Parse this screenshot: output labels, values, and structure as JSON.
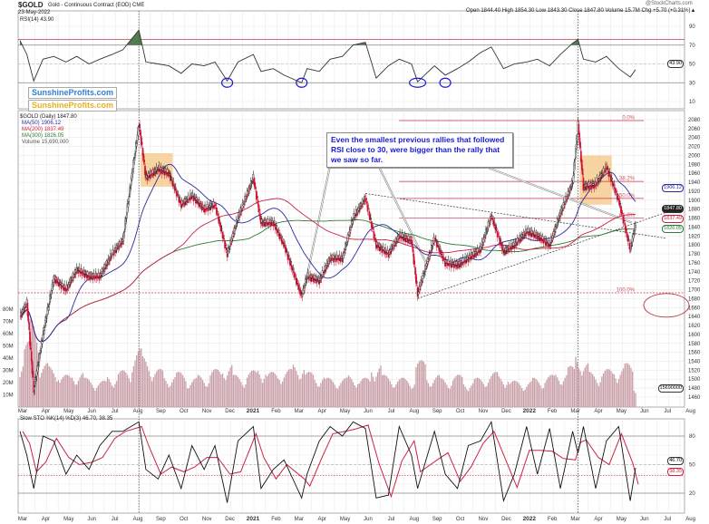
{
  "header": {
    "symbol": "$GOLD",
    "title": "Gold - Continuous Contract (EOD) CME",
    "date": "23-May-2022",
    "credit": "@StockCharts.com",
    "ohlc": "Open 1844.40  High 1854.30  Low 1843.30  Close 1847.80  Volume 15.7M  Chg +5.70 (+0.31%)▲"
  },
  "logos": {
    "blue": "SunshineProfits.com",
    "orange": "SunshineProfits.com"
  },
  "rsi_panel": {
    "label": "RSI(14) 43.90",
    "tag": "43.90",
    "ticks": [
      "90",
      "70",
      "50",
      "30",
      "10"
    ]
  },
  "price_panel": {
    "legend": [
      "$GOLD (Daily) 1847.80",
      "MA(50) 1906.12",
      "MA(200) 1837.49",
      "MA(300) 1826.05",
      "Volume 15,690,000"
    ],
    "tags": {
      "ma50": "1906.12",
      "close": "1847.80",
      "ma200": "1837.49",
      "ma300": "1826.05",
      "volume": "15690000"
    },
    "ticks": [
      "2080",
      "2060",
      "2040",
      "2020",
      "2000",
      "1980",
      "1960",
      "1940",
      "1920",
      "1900",
      "1880",
      "1860",
      "1840",
      "1820",
      "1800",
      "1780",
      "1760",
      "1740",
      "1720",
      "1700",
      "1680",
      "1660",
      "1640",
      "1620",
      "1600",
      "1580",
      "1560",
      "1540",
      "1520",
      "1500",
      "1480",
      "1460"
    ],
    "volume_ticks": [
      "80M",
      "70M",
      "60M",
      "50M",
      "40M",
      "30M",
      "20M",
      "10M"
    ],
    "fib_labels": [
      "0.0%",
      "38.2%",
      "50.0%",
      "61.8%",
      "100.0%"
    ],
    "callout": "Even the smallest previous rallies that followed RSI close to 30, were bigger than the rally that we saw so far."
  },
  "sto_panel": {
    "label": "Slow STO %K(14) %D(3) 46.70, 38.35",
    "tag_k": "46.70",
    "tag_d": "38.35",
    "ticks": [
      "80",
      "50",
      "20"
    ]
  },
  "months": [
    "Mar",
    "Apr",
    "May",
    "Jun",
    "Jul",
    "Aug",
    "Sep",
    "Oct",
    "Nov",
    "Dec",
    "2021",
    "Feb",
    "Mar",
    "Apr",
    "May",
    "Jun",
    "Jul",
    "Aug",
    "Sep",
    "Oct",
    "Nov",
    "Dec",
    "2022",
    "Feb",
    "Mar",
    "Apr",
    "May",
    "Jun",
    "Jul",
    "Aug"
  ],
  "colors": {
    "ma50": "#2a2aa0",
    "ma200": "#cc2244",
    "ma300": "#2e7d32",
    "down": "#cc1133",
    "up": "#111111",
    "volume": "#c9a0a8",
    "rsi_fill": "#4e7d4e",
    "box": "#f5c98a",
    "fib": "#cc3355",
    "callout": "#1a1ad8"
  },
  "chart_data": {
    "type": "candlestick",
    "title": "$GOLD Gold - Continuous Contract (EOD) CME",
    "ylim": [
      1460,
      2080
    ],
    "rsi_ylim": [
      0,
      100
    ],
    "sto_ylim": [
      0,
      100
    ],
    "fib_levels": {
      "0.0%": 2078,
      "38.2%": 1942,
      "50.0%": 1904,
      "61.8%": 1860,
      "100.0%": 1693
    },
    "columns": [
      "date",
      "close",
      "rsi",
      "sto_k",
      "volume_m"
    ],
    "series": [
      [
        "2020-03-01",
        1640,
        75,
        85,
        35
      ],
      [
        "2020-03-10",
        1670,
        60,
        60,
        45
      ],
      [
        "2020-03-19",
        1475,
        32,
        25,
        62
      ],
      [
        "2020-04-01",
        1600,
        55,
        80,
        30
      ],
      [
        "2020-04-15",
        1725,
        58,
        75,
        28
      ],
      [
        "2020-05-01",
        1700,
        52,
        40,
        22
      ],
      [
        "2020-05-15",
        1745,
        58,
        60,
        24
      ],
      [
        "2020-06-01",
        1730,
        50,
        45,
        20
      ],
      [
        "2020-06-15",
        1730,
        55,
        70,
        18
      ],
      [
        "2020-07-01",
        1780,
        60,
        85,
        22
      ],
      [
        "2020-07-15",
        1810,
        65,
        85,
        25
      ],
      [
        "2020-08-06",
        2070,
        86,
        95,
        40
      ],
      [
        "2020-08-15",
        1950,
        52,
        45,
        35
      ],
      [
        "2020-09-01",
        1970,
        50,
        35,
        26
      ],
      [
        "2020-09-15",
        1960,
        48,
        60,
        22
      ],
      [
        "2020-10-01",
        1890,
        40,
        25,
        24
      ],
      [
        "2020-10-15",
        1910,
        50,
        70,
        20
      ],
      [
        "2020-11-01",
        1880,
        48,
        45,
        22
      ],
      [
        "2020-11-15",
        1890,
        52,
        70,
        26
      ],
      [
        "2020-12-01",
        1780,
        32,
        10,
        30
      ],
      [
        "2020-12-15",
        1860,
        52,
        75,
        22
      ],
      [
        "2021-01-05",
        1950,
        60,
        90,
        25
      ],
      [
        "2021-01-15",
        1850,
        42,
        25,
        28
      ],
      [
        "2021-02-01",
        1850,
        45,
        45,
        24
      ],
      [
        "2021-02-15",
        1800,
        38,
        55,
        26
      ],
      [
        "2021-03-08",
        1685,
        30,
        15,
        30
      ],
      [
        "2021-03-15",
        1730,
        45,
        40,
        24
      ],
      [
        "2021-04-01",
        1720,
        42,
        75,
        22
      ],
      [
        "2021-04-15",
        1770,
        55,
        90,
        20
      ],
      [
        "2021-05-01",
        1770,
        58,
        80,
        20
      ],
      [
        "2021-05-15",
        1860,
        70,
        95,
        22
      ],
      [
        "2021-06-01",
        1905,
        73,
        88,
        20
      ],
      [
        "2021-06-15",
        1800,
        35,
        15,
        30
      ],
      [
        "2021-07-01",
        1780,
        48,
        18,
        22
      ],
      [
        "2021-07-15",
        1820,
        55,
        90,
        20
      ],
      [
        "2021-08-01",
        1810,
        50,
        60,
        20
      ],
      [
        "2021-08-09",
        1690,
        31,
        25,
        32
      ],
      [
        "2021-09-01",
        1815,
        48,
        85,
        22
      ],
      [
        "2021-09-15",
        1760,
        38,
        40,
        20
      ],
      [
        "2021-10-01",
        1755,
        45,
        25,
        22
      ],
      [
        "2021-10-15",
        1770,
        52,
        70,
        18
      ],
      [
        "2021-11-01",
        1790,
        62,
        75,
        20
      ],
      [
        "2021-11-15",
        1865,
        68,
        95,
        24
      ],
      [
        "2021-12-01",
        1785,
        45,
        12,
        22
      ],
      [
        "2021-12-15",
        1800,
        50,
        40,
        18
      ],
      [
        "2022-01-01",
        1830,
        52,
        90,
        18
      ],
      [
        "2022-01-15",
        1820,
        55,
        40,
        20
      ],
      [
        "2022-02-01",
        1800,
        48,
        88,
        22
      ],
      [
        "2022-02-15",
        1870,
        60,
        25,
        24
      ],
      [
        "2022-03-01",
        1940,
        72,
        85,
        28
      ],
      [
        "2022-03-08",
        2070,
        76,
        62,
        40
      ],
      [
        "2022-03-15",
        1930,
        55,
        90,
        30
      ],
      [
        "2022-04-01",
        1935,
        52,
        25,
        24
      ],
      [
        "2022-04-15",
        1975,
        58,
        75,
        26
      ],
      [
        "2022-05-01",
        1900,
        45,
        90,
        28
      ],
      [
        "2022-05-16",
        1790,
        36,
        12,
        30
      ],
      [
        "2022-05-23",
        1847.8,
        43.9,
        46.7,
        15.7
      ]
    ]
  }
}
